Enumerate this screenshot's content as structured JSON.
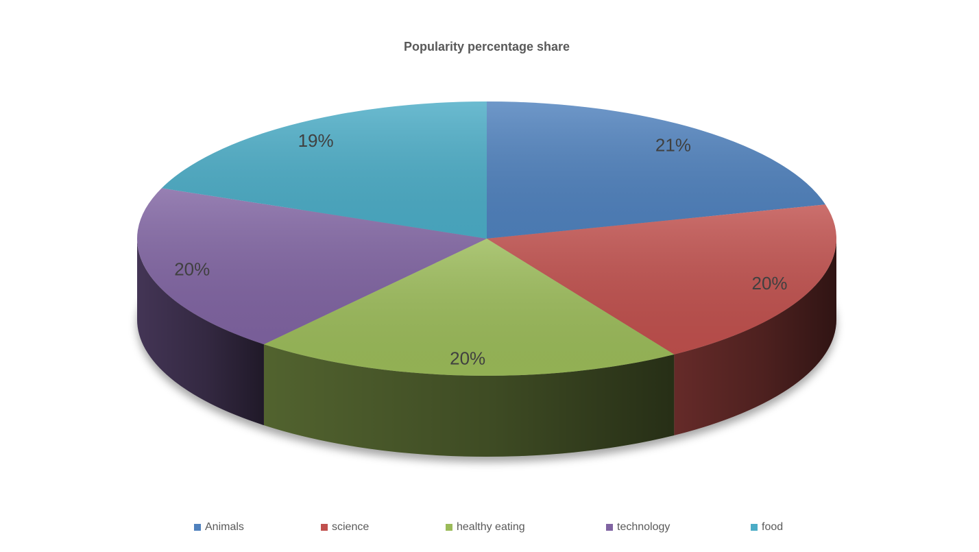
{
  "chart_data": {
    "type": "pie",
    "title": "Popularity percentage share",
    "categories": [
      "Animals",
      "science",
      "healthy eating",
      "technology",
      "food"
    ],
    "values": [
      21,
      20,
      20,
      20,
      19
    ],
    "data_labels": [
      "21%",
      "20%",
      "20%",
      "20%",
      "19%"
    ],
    "colors": [
      "#4F81BD",
      "#C0504D",
      "#9BBB59",
      "#8064A2",
      "#4BACC6"
    ],
    "legend_position": "bottom",
    "style": "3d"
  }
}
